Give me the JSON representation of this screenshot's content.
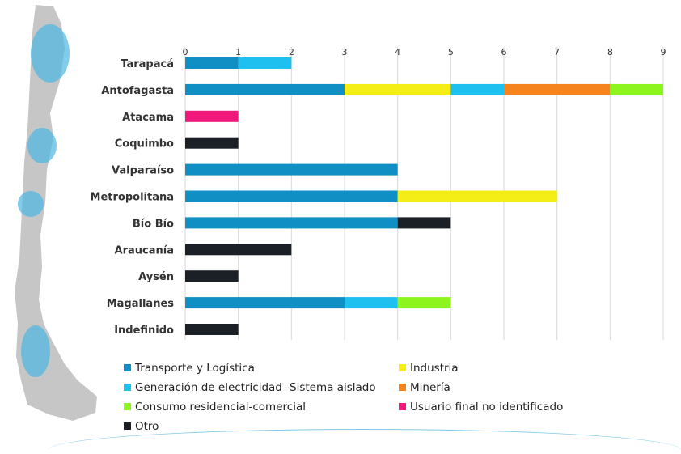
{
  "chart_data": {
    "type": "bar",
    "stacked": true,
    "orientation": "horizontal",
    "xlim": [
      0,
      9
    ],
    "x_ticks": [
      0,
      1,
      2,
      3,
      4,
      5,
      6,
      7,
      8,
      9
    ],
    "grid": true,
    "legend_position": "bottom",
    "categories": [
      "Tarapacá",
      "Antofagasta",
      "Atacama",
      "Coquimbo",
      "Valparaíso",
      "Metropolitana",
      "Bío Bío",
      "Araucanía",
      "Aysén",
      "Magallanes",
      "Indefinido"
    ],
    "series": [
      {
        "name": "Transporte y Logística",
        "color": "#0f8fc3",
        "values": [
          1,
          3,
          0,
          0,
          4,
          4,
          4,
          0,
          0,
          3,
          0
        ]
      },
      {
        "name": "Industria",
        "color": "#f4ee16",
        "values": [
          0,
          2,
          0,
          0,
          0,
          3,
          0,
          0,
          0,
          0,
          0
        ]
      },
      {
        "name": "Generación de electricidad -Sistema aislado",
        "color": "#1ec0f0",
        "values": [
          1,
          1,
          0,
          0,
          0,
          0,
          0,
          0,
          0,
          1,
          0
        ]
      },
      {
        "name": "Minería",
        "color": "#f5841f",
        "values": [
          0,
          2,
          0,
          0,
          0,
          0,
          0,
          0,
          0,
          0,
          0
        ]
      },
      {
        "name": "Consumo residencial-comercial",
        "color": "#8df41e",
        "values": [
          0,
          1,
          0,
          0,
          0,
          0,
          0,
          0,
          0,
          1,
          0
        ]
      },
      {
        "name": "Usuario final no identificado",
        "color": "#f0187a",
        "values": [
          0,
          0,
          1,
          0,
          0,
          0,
          0,
          0,
          0,
          0,
          0
        ]
      },
      {
        "name": "Otro",
        "color": "#1b1f26",
        "values": [
          0,
          0,
          0,
          1,
          0,
          0,
          1,
          2,
          1,
          0,
          1
        ]
      }
    ]
  },
  "map": {
    "icon": "chile-map-icon",
    "land_color": "#c2c2c2",
    "highlight_color": "#4db6e2"
  }
}
